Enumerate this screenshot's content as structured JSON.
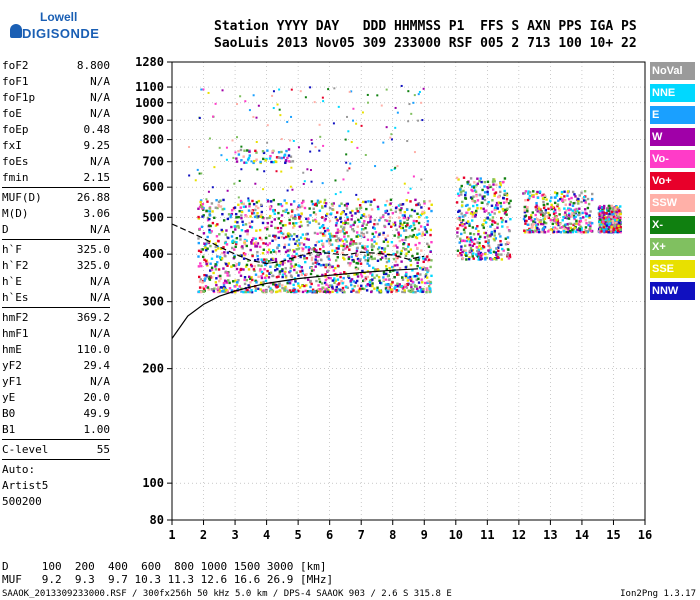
{
  "logo": {
    "top": "Lowell",
    "bottom": "DIGISONDE"
  },
  "header": {
    "line1": "Station YYYY DAY   DDD HHMMSS P1  FFS S AXN PPS IGA PS",
    "line2": "SaoLuis 2013 Nov05 309 233000 RSF 005 2 713 100 10+ 22"
  },
  "params": [
    {
      "name": "foF2",
      "value": "8.800"
    },
    {
      "name": "foF1",
      "value": "N/A"
    },
    {
      "name": "foF1p",
      "value": "N/A"
    },
    {
      "name": "foE",
      "value": "N/A"
    },
    {
      "name": "foEp",
      "value": "0.48"
    },
    {
      "name": "fxI",
      "value": "9.25"
    },
    {
      "name": "foEs",
      "value": "N/A"
    },
    {
      "name": "fmin",
      "value": "2.15"
    },
    {
      "sep": true
    },
    {
      "name": "MUF(D)",
      "value": "26.88"
    },
    {
      "name": "M(D)",
      "value": "3.06"
    },
    {
      "name": "D",
      "value": "N/A"
    },
    {
      "sep": true
    },
    {
      "name": "h`F",
      "value": "325.0"
    },
    {
      "name": "h`F2",
      "value": "325.0"
    },
    {
      "name": "h`E",
      "value": "N/A"
    },
    {
      "name": "h`Es",
      "value": "N/A"
    },
    {
      "sep": true
    },
    {
      "name": "hmF2",
      "value": "369.2"
    },
    {
      "name": "hmF1",
      "value": "N/A"
    },
    {
      "name": "hmE",
      "value": "110.0"
    },
    {
      "name": "yF2",
      "value": "29.4"
    },
    {
      "name": "yF1",
      "value": "N/A"
    },
    {
      "name": "yE",
      "value": "20.0"
    },
    {
      "name": "B0",
      "value": "49.9"
    },
    {
      "name": "B1",
      "value": "1.00"
    },
    {
      "sep": true
    },
    {
      "name": "C-level",
      "value": "55"
    },
    {
      "sep": true
    }
  ],
  "auto": [
    "Auto:",
    "Artist5",
    "500200"
  ],
  "legend": [
    {
      "label": "NoVal",
      "color": "#9a9a9a"
    },
    {
      "label": "NNE",
      "color": "#00d8ff"
    },
    {
      "label": "E",
      "color": "#1aa0ff"
    },
    {
      "label": "W",
      "color": "#a000a8"
    },
    {
      "label": "Vo-",
      "color": "#ff3cc8"
    },
    {
      "label": "Vo+",
      "color": "#e8002a"
    },
    {
      "label": "SSW",
      "color": "#ffb0a8"
    },
    {
      "label": "X-",
      "color": "#108010"
    },
    {
      "label": "X+",
      "color": "#80c060"
    },
    {
      "label": "SSE",
      "color": "#e8e000"
    },
    {
      "label": "NNW",
      "color": "#1010c0"
    }
  ],
  "footer": {
    "d_row": "D     100  200  400  600  800 1000 1500 3000 [km]",
    "muf_row": "MUF   9.2  9.3  9.7 10.3 11.3 12.6 16.6 26.9 [MHz]",
    "file_line": "SAAOK_2013309233000.RSF / 300fx256h 50 kHz 5.0 km / DPS-4 SAAOK 903 / 2.6 S 315.8 E",
    "version": "Ion2Png 1.3.17"
  },
  "chart_data": {
    "type": "scatter",
    "title": "",
    "xlabel": "",
    "ylabel": "",
    "xlim": [
      1,
      16
    ],
    "ylim": [
      80,
      1280
    ],
    "yscale": "log",
    "x_ticks": [
      "1",
      "2",
      "3",
      "4",
      "5",
      "6",
      "7",
      "8",
      "9",
      "10",
      "11",
      "12",
      "13",
      "14",
      "15",
      "16"
    ],
    "y_ticks": [
      80,
      100,
      200,
      300,
      400,
      500,
      600,
      700,
      800,
      900,
      1000,
      1100,
      1280
    ],
    "grid": true,
    "legend_placement": "right",
    "series": [
      {
        "type": "ionogram_echoes",
        "note_clusters": [
          {
            "freq": [
              1.8,
              9.2
            ],
            "height": [
              320,
              560
            ]
          },
          {
            "freq": [
              10.0,
              11.7
            ],
            "height": [
              390,
              640
            ]
          },
          {
            "freq": [
              12.1,
              14.3
            ],
            "height": [
              460,
              590
            ]
          },
          {
            "freq": [
              14.5,
              15.2
            ],
            "height": [
              460,
              540
            ]
          },
          {
            "freq": [
              3.0,
              4.8
            ],
            "height": [
              700,
              760
            ]
          }
        ]
      }
    ],
    "profile_curves": [
      {
        "name": "",
        "x": [
          1.0,
          1.5,
          2.0,
          2.5,
          3.0,
          3.5,
          4.0,
          5.0,
          6.0,
          7.0,
          8.0,
          8.8
        ],
        "y": [
          240,
          275,
          295,
          310,
          320,
          328,
          335,
          345,
          352,
          358,
          363,
          366
        ]
      },
      {
        "name": "",
        "x": [
          1.0,
          1.5,
          2.0,
          2.5,
          3.0,
          3.5,
          4.0,
          4.5,
          5.0,
          5.5,
          6.0,
          6.5,
          7.0,
          7.5,
          8.0,
          8.5,
          9.0
        ],
        "y": [
          480,
          460,
          440,
          418,
          400,
          385,
          378,
          383,
          395,
          405,
          402,
          398,
          405,
          402,
          398,
          388,
          395
        ]
      }
    ]
  }
}
